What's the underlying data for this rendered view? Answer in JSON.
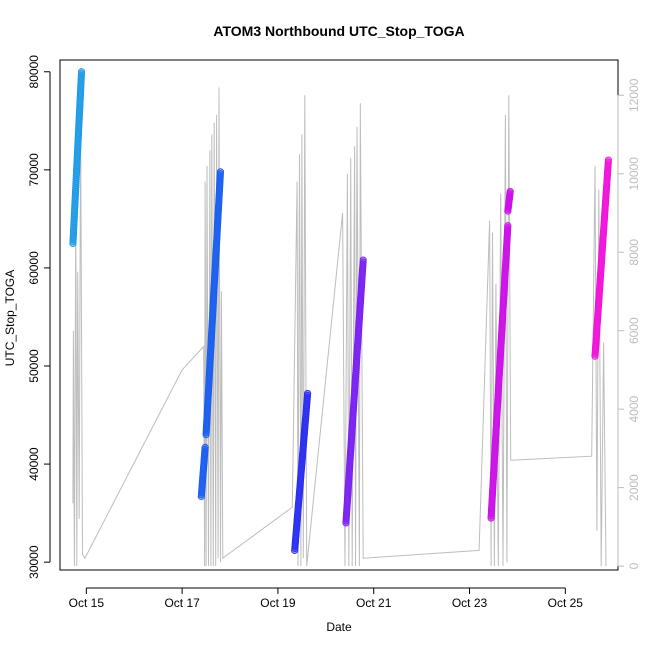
{
  "chart_data": {
    "type": "scatter",
    "title": "ATOM3 Northbound UTC_Stop_TOGA",
    "xlabel": "Date",
    "ylabel": "UTC_Stop_TOGA",
    "x_tick_labels": [
      "Oct 15",
      "Oct 17",
      "Oct 19",
      "Oct 21",
      "Oct 23",
      "Oct 25"
    ],
    "x_tick_dates": [
      15,
      17,
      19,
      21,
      23,
      25
    ],
    "xlim": [
      14.45,
      26.1
    ],
    "ylim": [
      29200,
      81200
    ],
    "y_ticks": [
      30000,
      40000,
      50000,
      60000,
      70000,
      80000
    ],
    "y_tick_labels": [
      "30000",
      "40000",
      "50000",
      "60000",
      "70000",
      "80000"
    ],
    "y2lim": [
      -100,
      12900
    ],
    "y2_ticks": [
      0,
      2000,
      4000,
      6000,
      8000,
      10000,
      12000
    ],
    "y2_tick_labels": [
      "0",
      "2000",
      "4000",
      "6000",
      "8000",
      "10000",
      "12000"
    ],
    "grid": false,
    "secondary_series": {
      "axis": "right",
      "color": "#bdbdbd",
      "style": "line",
      "points": [
        [
          14.72,
          1600
        ],
        [
          14.73,
          6000
        ],
        [
          14.75,
          0
        ],
        [
          14.78,
          9000
        ],
        [
          14.8,
          0
        ],
        [
          14.82,
          7500
        ],
        [
          14.85,
          1200
        ],
        [
          14.88,
          11500
        ],
        [
          14.92,
          300
        ],
        [
          14.97,
          200
        ],
        [
          17.0,
          5000
        ],
        [
          17.45,
          5600
        ],
        [
          17.47,
          0
        ],
        [
          17.48,
          9800
        ],
        [
          17.5,
          0
        ],
        [
          17.52,
          10200
        ],
        [
          17.55,
          0
        ],
        [
          17.58,
          10600
        ],
        [
          17.6,
          0
        ],
        [
          17.62,
          11000
        ],
        [
          17.65,
          0
        ],
        [
          17.67,
          11300
        ],
        [
          17.7,
          0
        ],
        [
          17.72,
          11500
        ],
        [
          17.75,
          200
        ],
        [
          17.77,
          12200
        ],
        [
          17.8,
          100
        ],
        [
          17.82,
          7000
        ],
        [
          17.85,
          200
        ],
        [
          19.3,
          1500
        ],
        [
          19.4,
          9800
        ],
        [
          19.42,
          0
        ],
        [
          19.45,
          10500
        ],
        [
          19.48,
          0
        ],
        [
          19.5,
          11000
        ],
        [
          19.53,
          200
        ],
        [
          19.56,
          12000
        ],
        [
          19.6,
          0
        ],
        [
          20.35,
          9000
        ],
        [
          20.4,
          0
        ],
        [
          20.45,
          10000
        ],
        [
          20.48,
          0
        ],
        [
          20.52,
          10400
        ],
        [
          20.55,
          0
        ],
        [
          20.6,
          10700
        ],
        [
          20.62,
          0
        ],
        [
          20.65,
          11200
        ],
        [
          20.7,
          0
        ],
        [
          20.72,
          11800
        ],
        [
          20.78,
          200
        ],
        [
          23.2,
          400
        ],
        [
          23.42,
          8800
        ],
        [
          23.45,
          0
        ],
        [
          23.48,
          8500
        ],
        [
          23.52,
          0
        ],
        [
          23.55,
          7200
        ],
        [
          23.6,
          0
        ],
        [
          23.65,
          9500
        ],
        [
          23.7,
          0
        ],
        [
          23.75,
          11500
        ],
        [
          23.78,
          100
        ],
        [
          23.82,
          12000
        ],
        [
          23.86,
          2700
        ],
        [
          25.55,
          2800
        ],
        [
          25.62,
          10200
        ],
        [
          25.66,
          900
        ],
        [
          25.7,
          9600
        ],
        [
          25.75,
          0
        ],
        [
          25.8,
          5700
        ],
        [
          25.85,
          0
        ]
      ]
    },
    "series": [
      {
        "color": "#1f9be6",
        "segments": [
          {
            "x": [
              14.72,
              14.9
            ],
            "y": [
              62500,
              80000
            ]
          }
        ]
      },
      {
        "color": "#1a5ef0",
        "segments": [
          {
            "x": [
              17.4,
              17.48
            ],
            "y": [
              36700,
              41700
            ]
          },
          {
            "x": [
              17.5,
              17.8
            ],
            "y": [
              43000,
              69800
            ]
          }
        ]
      },
      {
        "color": "#2a2df0",
        "segments": [
          {
            "x": [
              19.35,
              19.62
            ],
            "y": [
              31200,
              47200
            ]
          }
        ]
      },
      {
        "color": "#7a20f2",
        "segments": [
          {
            "x": [
              20.42,
              20.78
            ],
            "y": [
              34000,
              60800
            ]
          }
        ]
      },
      {
        "color": "#cc10e8",
        "segments": [
          {
            "x": [
              23.45,
              23.8
            ],
            "y": [
              34500,
              64300
            ]
          },
          {
            "x": [
              23.8,
              23.85
            ],
            "y": [
              65800,
              67800
            ]
          }
        ]
      },
      {
        "color": "#f012d8",
        "segments": [
          {
            "x": [
              25.62,
              25.9
            ],
            "y": [
              51000,
              71000
            ]
          }
        ]
      }
    ]
  }
}
